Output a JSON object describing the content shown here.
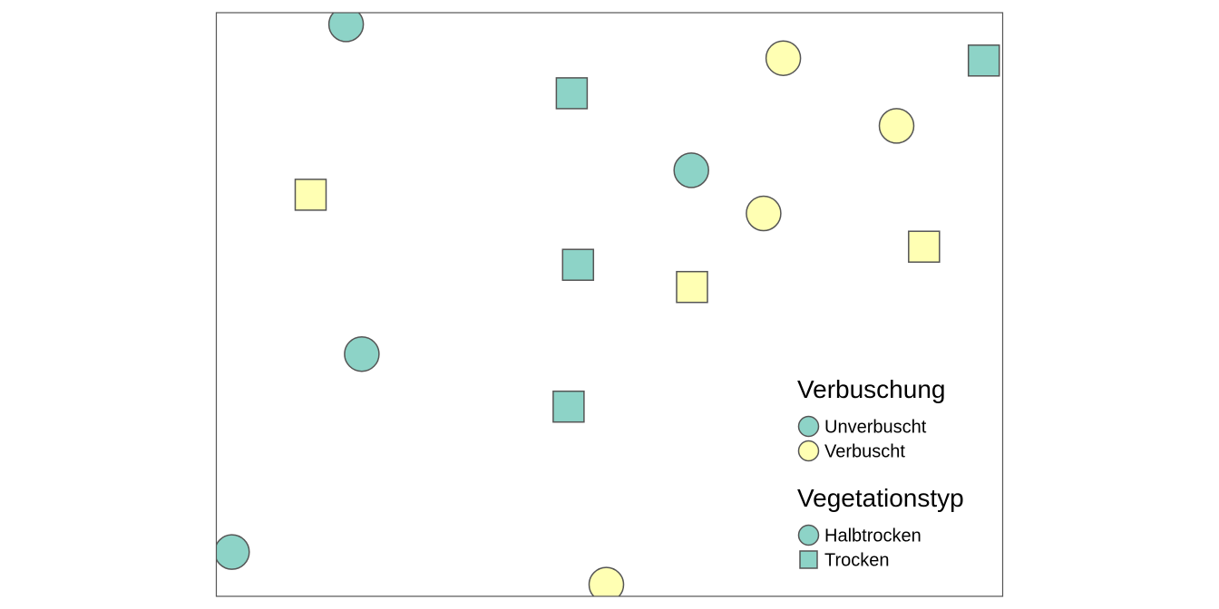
{
  "chart_data": {
    "type": "scatter",
    "title": "",
    "xlabel": "",
    "ylabel": "",
    "xlim": [
      0,
      100
    ],
    "ylim": [
      0,
      100
    ],
    "grid": false,
    "axes_shown": false,
    "legend_position": "bottom-right (inside plot)",
    "colors": {
      "Unverbuscht": "#8dd3c7",
      "Verbuscht": "#ffffb3",
      "outline": "#555555",
      "frame": "#555555"
    },
    "shapes": {
      "Halbtrocken": "circle",
      "Trocken": "square"
    },
    "points": [
      {
        "x": 16.5,
        "y": 98.0,
        "Verbuschung": "Unverbuscht",
        "Vegetationstyp": "Halbtrocken"
      },
      {
        "x": 18.5,
        "y": 41.5,
        "Verbuschung": "Unverbuscht",
        "Vegetationstyp": "Halbtrocken"
      },
      {
        "x": 2.0,
        "y": 7.6,
        "Verbuschung": "Unverbuscht",
        "Vegetationstyp": "Halbtrocken"
      },
      {
        "x": 60.4,
        "y": 73.0,
        "Verbuschung": "Unverbuscht",
        "Vegetationstyp": "Halbtrocken"
      },
      {
        "x": 45.2,
        "y": 86.2,
        "Verbuschung": "Unverbuscht",
        "Vegetationstyp": "Trocken"
      },
      {
        "x": 46.0,
        "y": 56.8,
        "Verbuschung": "Unverbuscht",
        "Vegetationstyp": "Trocken"
      },
      {
        "x": 44.8,
        "y": 32.5,
        "Verbuschung": "Unverbuscht",
        "Vegetationstyp": "Trocken"
      },
      {
        "x": 97.6,
        "y": 91.8,
        "Verbuschung": "Unverbuscht",
        "Vegetationstyp": "Trocken"
      },
      {
        "x": 72.1,
        "y": 92.2,
        "Verbuschung": "Verbuscht",
        "Vegetationstyp": "Halbtrocken"
      },
      {
        "x": 86.5,
        "y": 80.6,
        "Verbuschung": "Verbuscht",
        "Vegetationstyp": "Halbtrocken"
      },
      {
        "x": 69.6,
        "y": 65.6,
        "Verbuschung": "Verbuscht",
        "Vegetationstyp": "Halbtrocken"
      },
      {
        "x": 49.6,
        "y": 2.0,
        "Verbuschung": "Verbuscht",
        "Vegetationstyp": "Halbtrocken"
      },
      {
        "x": 12.0,
        "y": 68.8,
        "Verbuschung": "Verbuscht",
        "Vegetationstyp": "Trocken"
      },
      {
        "x": 90.0,
        "y": 59.9,
        "Verbuschung": "Verbuscht",
        "Vegetationstyp": "Trocken"
      },
      {
        "x": 60.5,
        "y": 53.0,
        "Verbuschung": "Verbuscht",
        "Vegetationstyp": "Trocken"
      }
    ],
    "legends": [
      {
        "title": "Verbuschung",
        "entries": [
          {
            "label": "Unverbuscht",
            "shape": "circle",
            "color": "#8dd3c7"
          },
          {
            "label": "Verbuscht",
            "shape": "circle",
            "color": "#ffffb3"
          }
        ]
      },
      {
        "title": "Vegetationstyp",
        "entries": [
          {
            "label": "Halbtrocken",
            "shape": "circle",
            "color": "#8dd3c7"
          },
          {
            "label": "Trocken",
            "shape": "square",
            "color": "#8dd3c7"
          }
        ]
      }
    ]
  }
}
